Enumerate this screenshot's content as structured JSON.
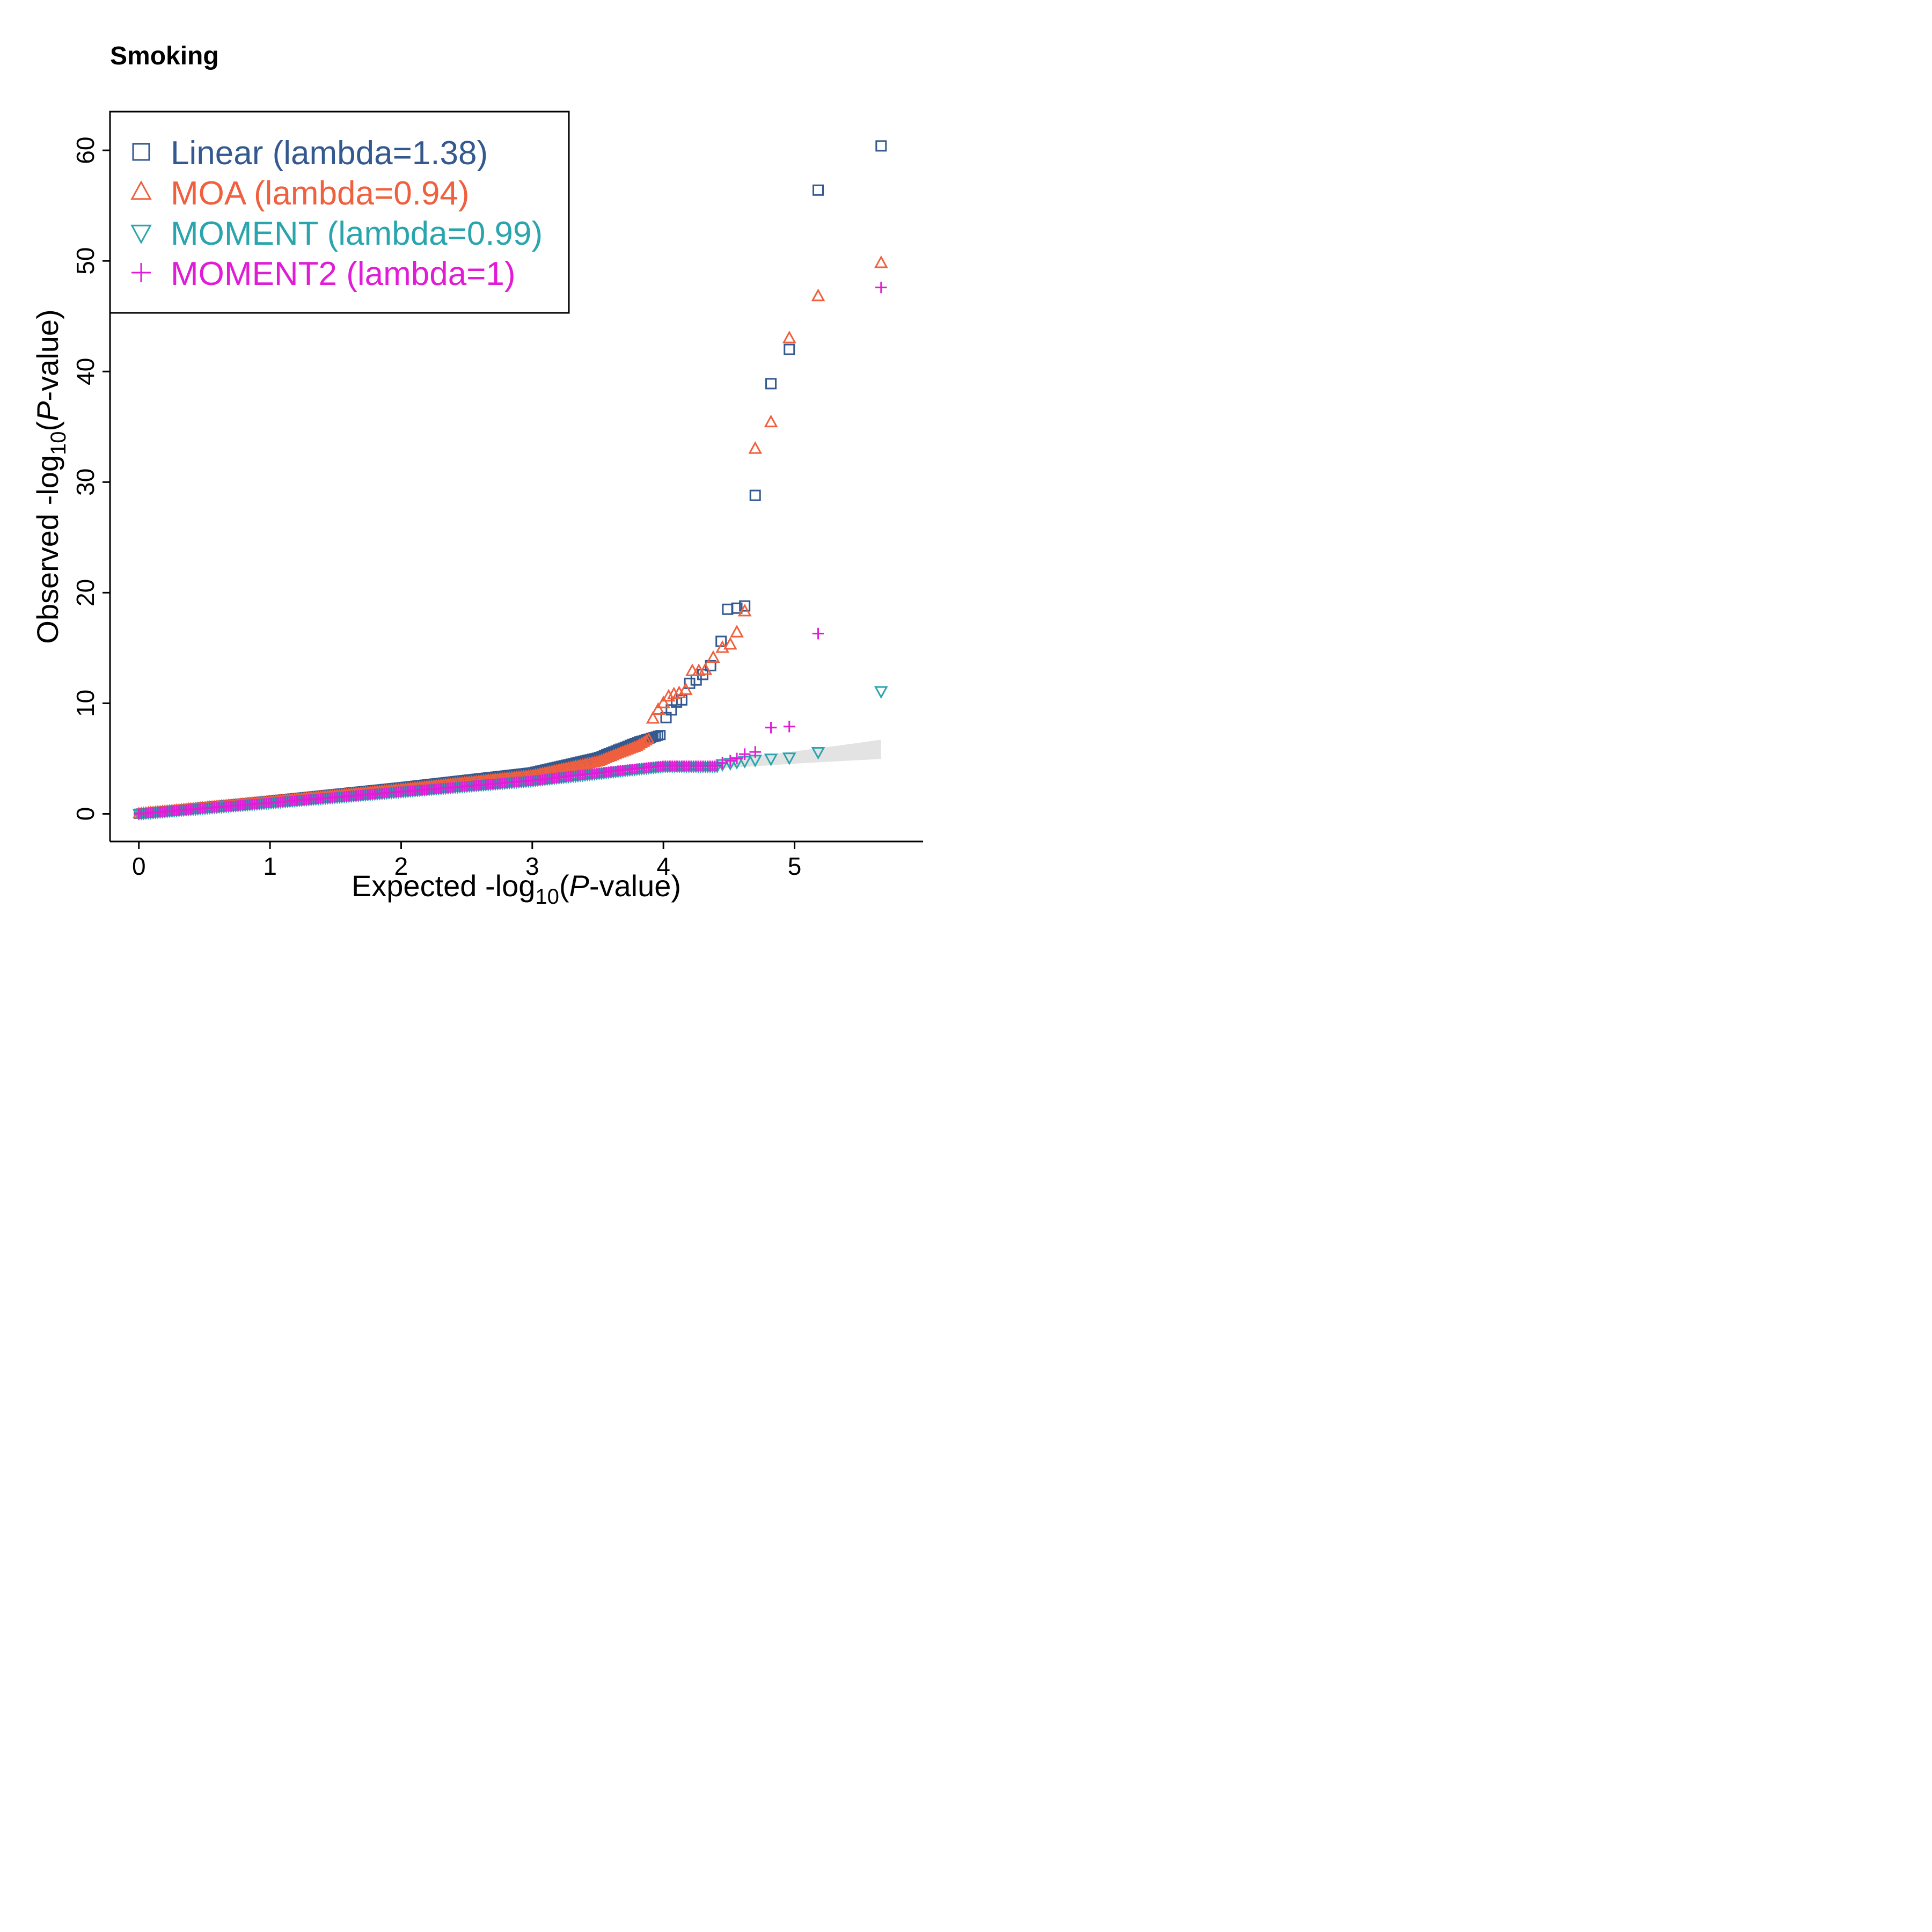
{
  "chart_data": {
    "type": "scatter",
    "title": "Smoking",
    "xlabel": {
      "prefix": "Expected -log",
      "sub": "10",
      "open": "(",
      "italic": "P",
      "suffix": "-value)"
    },
    "ylabel": {
      "prefix": "Observed -log",
      "sub": "10",
      "open": "(",
      "italic": "P",
      "suffix": "-value)"
    },
    "xlim": [
      -0.22,
      5.98
    ],
    "ylim": [
      -2.5,
      63.5
    ],
    "xticks": [
      0,
      1,
      2,
      3,
      4,
      5
    ],
    "yticks": [
      0,
      10,
      20,
      30,
      40,
      50,
      60
    ],
    "grid": false,
    "legend_position": "top-left",
    "x_max": 5.66,
    "confidence_band": {
      "fill": "#e3e3e3"
    },
    "series": [
      {
        "name": "Linear (lambda=1.38)",
        "marker": "square",
        "color": "#34598f",
        "inflation": 1.0,
        "curve_y": [
          0.01,
          1.18,
          2.4,
          3.75,
          5.1,
          6.5,
          7.2
        ],
        "tail": [
          [
            4.02,
            8.7
          ],
          [
            4.06,
            9.4
          ],
          [
            4.1,
            10.1
          ],
          [
            4.14,
            10.3
          ],
          [
            4.2,
            11.8
          ],
          [
            4.25,
            12.1
          ],
          [
            4.3,
            12.6
          ],
          [
            4.36,
            13.4
          ],
          [
            4.44,
            15.6
          ],
          [
            4.49,
            18.5
          ],
          [
            4.56,
            18.6
          ],
          [
            4.62,
            18.8
          ],
          [
            4.7,
            28.8
          ],
          [
            4.82,
            38.9
          ],
          [
            4.96,
            42.0
          ],
          [
            5.18,
            56.4
          ],
          [
            5.66,
            60.4
          ]
        ]
      },
      {
        "name": "MOA (lambda=0.94)",
        "marker": "triangle-up",
        "color": "#f0603e",
        "inflation": 0.92,
        "curve_y": [
          0.01,
          1.1,
          2.2,
          3.45,
          4.7,
          6.1,
          7.5
        ],
        "tail": [
          [
            3.92,
            8.6
          ],
          [
            3.96,
            9.4
          ],
          [
            4.0,
            10.0
          ],
          [
            4.04,
            10.6
          ],
          [
            4.08,
            10.8
          ],
          [
            4.12,
            10.9
          ],
          [
            4.17,
            11.2
          ],
          [
            4.22,
            12.9
          ],
          [
            4.27,
            12.9
          ],
          [
            4.32,
            13.0
          ],
          [
            4.38,
            14.1
          ],
          [
            4.45,
            15.0
          ],
          [
            4.51,
            15.3
          ],
          [
            4.56,
            16.4
          ],
          [
            4.62,
            18.3
          ],
          [
            4.7,
            33.0
          ],
          [
            4.82,
            35.4
          ],
          [
            4.96,
            43.0
          ],
          [
            5.18,
            46.8
          ],
          [
            5.66,
            49.8
          ]
        ]
      },
      {
        "name": "MOMENT (lambda=0.99)",
        "marker": "triangle-down",
        "color": "#2aa5ad",
        "inflation": 0.99,
        "curve_y": [
          0.01,
          1.0,
          2.0,
          3.0,
          3.65,
          4.05,
          4.3
        ],
        "tail": [
          [
            4.45,
            4.5
          ],
          [
            4.51,
            4.6
          ],
          [
            4.56,
            4.7
          ],
          [
            4.62,
            4.8
          ],
          [
            4.7,
            4.9
          ],
          [
            4.82,
            5.0
          ],
          [
            4.96,
            5.1
          ],
          [
            5.18,
            5.6
          ],
          [
            5.66,
            11.1
          ]
        ]
      },
      {
        "name": "MOMENT2 (lambda=1)",
        "marker": "plus",
        "color": "#e01cd6",
        "inflation": 1.0,
        "curve_y": [
          0.01,
          1.0,
          2.0,
          3.0,
          3.7,
          4.1,
          4.35
        ],
        "tail": [
          [
            4.45,
            4.6
          ],
          [
            4.51,
            4.8
          ],
          [
            4.56,
            5.0
          ],
          [
            4.62,
            5.4
          ],
          [
            4.7,
            5.6
          ],
          [
            4.82,
            7.8
          ],
          [
            4.96,
            7.9
          ],
          [
            5.18,
            16.3
          ],
          [
            5.66,
            47.6
          ]
        ]
      }
    ]
  }
}
